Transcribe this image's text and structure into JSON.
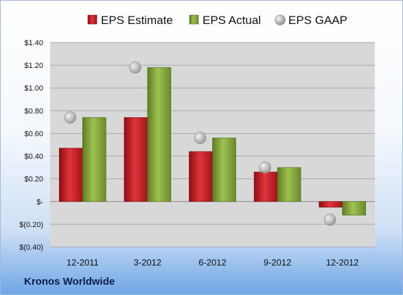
{
  "footer": {
    "company": "Kronos Worldwide"
  },
  "chart_data": {
    "type": "bar",
    "categories": [
      "12-2011",
      "3-2012",
      "6-2012",
      "9-2012",
      "12-2012"
    ],
    "series": [
      {
        "name": "EPS Estimate",
        "type": "bar",
        "color": "#cc1f26",
        "values": [
          0.47,
          0.74,
          0.44,
          0.26,
          -0.05
        ]
      },
      {
        "name": "EPS Actual",
        "type": "bar",
        "color": "#86a83c",
        "values": [
          0.74,
          1.18,
          0.56,
          0.3,
          -0.12
        ]
      },
      {
        "name": "EPS GAAP",
        "type": "scatter",
        "color": "#b4b4b4",
        "values": [
          0.74,
          1.18,
          0.56,
          0.3,
          -0.16
        ]
      }
    ],
    "y_ticks": [
      "$1.40",
      "$1.20",
      "$1.00",
      "$0.80",
      "$0.60",
      "$0.40",
      "$0.20",
      "$-",
      "$(0.20)",
      "$(0.40)"
    ],
    "ylim": [
      -0.4,
      1.4
    ],
    "grid": true,
    "legend_position": "top"
  }
}
